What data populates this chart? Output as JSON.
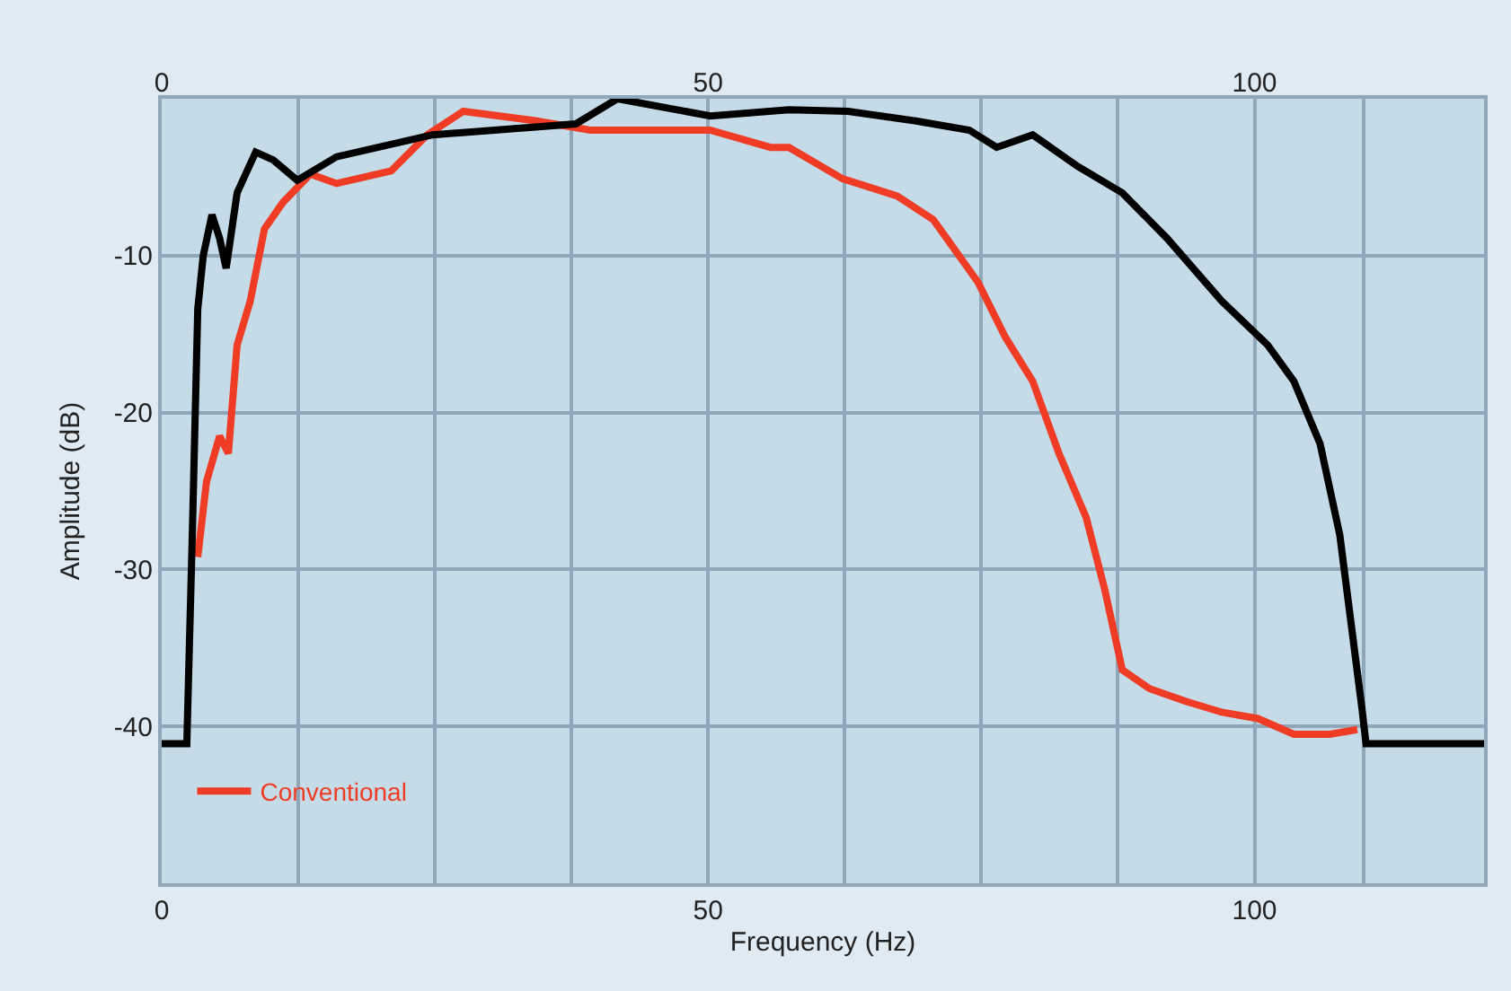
{
  "chart_data": {
    "type": "line",
    "xlabel": "Frequency (Hz)",
    "ylabel": "Amplitude (dB)",
    "xlim": [
      0,
      121
    ],
    "ylim": [
      -50,
      0
    ],
    "xticks": [
      0,
      {
        "value": 12.5,
        "label": null
      },
      {
        "value": 25,
        "label": null
      },
      {
        "value": 37.5,
        "label": null
      },
      50,
      {
        "value": 62.5,
        "label": null
      },
      {
        "value": 75,
        "label": null
      },
      {
        "value": 87.5,
        "label": null
      },
      100,
      {
        "value": 110,
        "label": null
      }
    ],
    "x2lim": [
      0,
      121
    ],
    "x2ticks": [
      0,
      50,
      100
    ],
    "yticks": [
      {
        "value": 0,
        "label": null
      },
      -10,
      -20,
      -30,
      -40
    ],
    "grid": true,
    "legend": "bottom left",
    "line_style": "solid",
    "marker": "none",
    "series": [
      {
        "name": "Conventional",
        "color": "#f03c24",
        "x": [
          3.3,
          4.1,
          5.3,
          6.1,
          6.9,
          8.1,
          9.4,
          11.1,
          13.6,
          16,
          21,
          24.3,
          27.6,
          34.2,
          39.2,
          50.2,
          55.7,
          57.4,
          62.3,
          67.3,
          70.6,
          74.7,
          77.2,
          79.7,
          82.1,
          84.6,
          86.3,
          87.9,
          90.4,
          93.7,
          97,
          100.3,
          103.6,
          106.9,
          109.4
        ],
        "values": [
          -29.2,
          -24.4,
          -21.5,
          -22.6,
          -15.7,
          -12.9,
          -8.3,
          -6.6,
          -4.8,
          -5.4,
          -4.6,
          -2.3,
          -0.8,
          -1.4,
          -2,
          -2,
          -3.1,
          -3.1,
          -5.1,
          -6.2,
          -7.7,
          -11.7,
          -15.2,
          -18,
          -22.6,
          -26.7,
          -31.3,
          -36.4,
          -37.6,
          -38.4,
          -39.1,
          -39.5,
          -40.5,
          -40.5,
          -40.2
        ]
      },
      {
        "color": "#000000",
        "x": [
          0,
          2.3,
          2.8,
          3.3,
          3.8,
          4.6,
          5.3,
          5.9,
          6.9,
          8.6,
          10.2,
          12.4,
          16,
          24.8,
          37.9,
          41.7,
          50.2,
          57.4,
          62.8,
          68.9,
          73.9,
          76.4,
          79.7,
          83.8,
          87.9,
          92,
          97,
          101.2,
          103.6,
          106,
          107.8,
          109.8,
          110.2,
          121
        ],
        "values": [
          -41.1,
          -41.1,
          -27.8,
          -13.4,
          -10,
          -7.4,
          -8.9,
          -10.8,
          -6,
          -3.4,
          -3.9,
          -5.2,
          -3.7,
          -2.3,
          -1.6,
          0,
          -1.1,
          -0.7,
          -0.8,
          -1.4,
          -2,
          -3.1,
          -2.3,
          -4.3,
          -6,
          -8.9,
          -12.9,
          -15.7,
          -18,
          -22,
          -27.8,
          -38.7,
          -41.1,
          -41.1
        ]
      }
    ]
  }
}
